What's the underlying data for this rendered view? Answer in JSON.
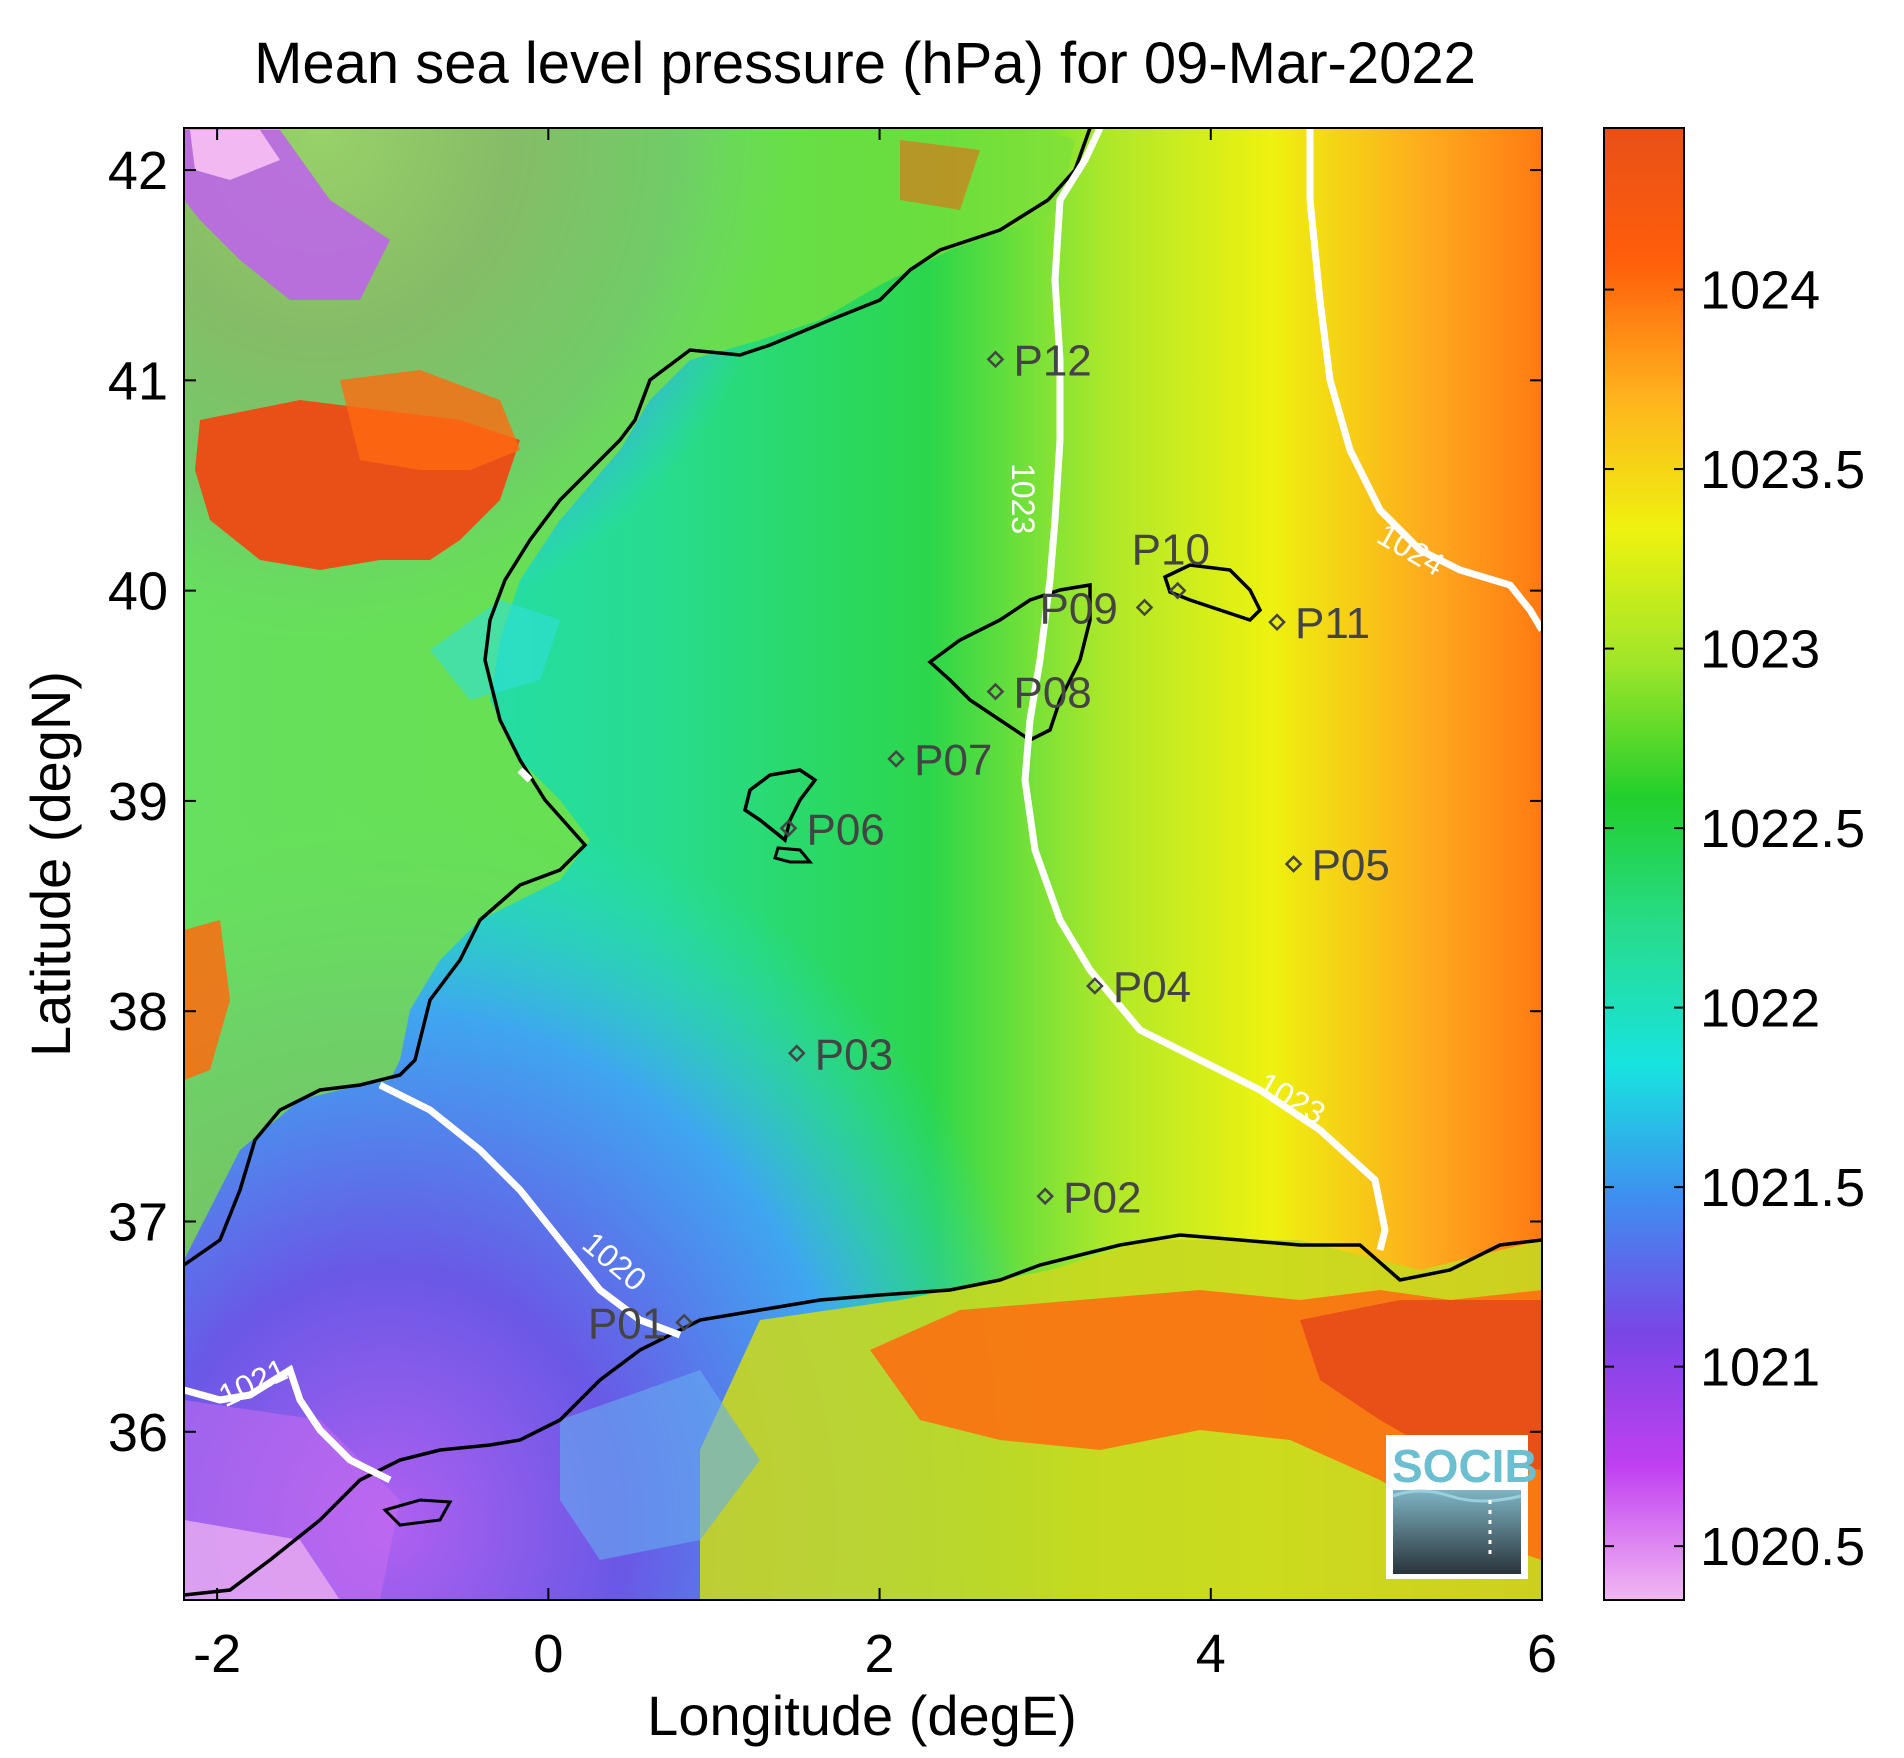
{
  "title": "Mean sea level pressure (hPa) for 09-Mar-2022",
  "map": {
    "xlabel": "Longitude (degE)",
    "ylabel": "Latitude (degN)",
    "xlim": [
      -2.2,
      6.0
    ],
    "ylim": [
      35.2,
      42.2
    ],
    "xticks": [
      "-2",
      "0",
      "2",
      "4",
      "6"
    ],
    "yticks": [
      "36",
      "37",
      "38",
      "39",
      "40",
      "41",
      "42"
    ]
  },
  "colorbar": {
    "range": [
      1020.35,
      1024.45
    ],
    "ticks": [
      "1020.5",
      "1021",
      "1021.5",
      "1022",
      "1022.5",
      "1023",
      "1023.5",
      "1024"
    ],
    "colors": [
      "#f2b8f2",
      "#c040f0",
      "#7a45e6",
      "#3f8ef0",
      "#18e3e0",
      "#27dc8f",
      "#22cf2c",
      "#9fe62a",
      "#eef20f",
      "#ffb21e",
      "#ff5e0a",
      "#e85018"
    ]
  },
  "stations": [
    {
      "name": "P01",
      "lon": 0.82,
      "lat": 36.52
    },
    {
      "name": "P02",
      "lon": 3.0,
      "lat": 37.12
    },
    {
      "name": "P03",
      "lon": 1.5,
      "lat": 37.8
    },
    {
      "name": "P04",
      "lon": 3.3,
      "lat": 38.12
    },
    {
      "name": "P05",
      "lon": 4.5,
      "lat": 38.7
    },
    {
      "name": "P06",
      "lon": 1.45,
      "lat": 38.87
    },
    {
      "name": "P07",
      "lon": 2.1,
      "lat": 39.2
    },
    {
      "name": "P08",
      "lon": 2.7,
      "lat": 39.52
    },
    {
      "name": "P09",
      "lon": 3.6,
      "lat": 39.92
    },
    {
      "name": "P10",
      "lon": 3.8,
      "lat": 40.0
    },
    {
      "name": "P11",
      "lon": 4.4,
      "lat": 39.85
    },
    {
      "name": "P12",
      "lon": 2.7,
      "lat": 41.1
    }
  ],
  "contour_labels": [
    "1023",
    "1024",
    "1023",
    "1020",
    "1021"
  ],
  "logo": "SOCIB"
}
